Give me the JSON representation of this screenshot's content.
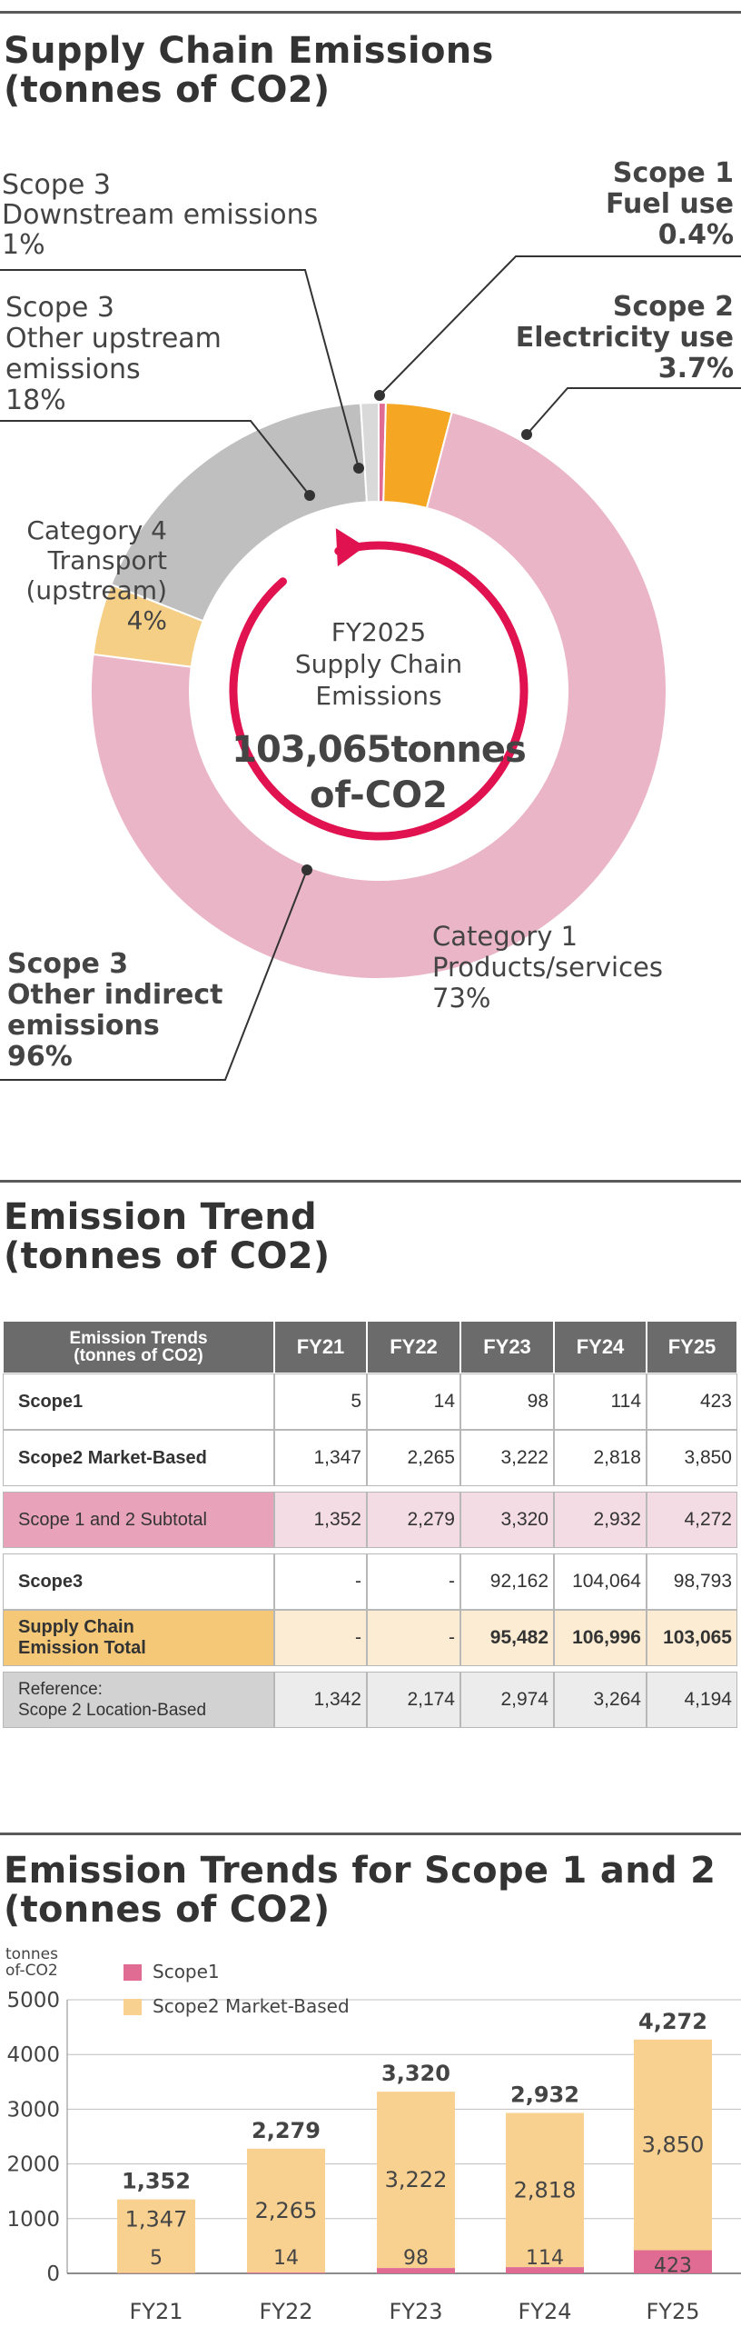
{
  "colors": {
    "scope1": "#e06c94",
    "scope2": "#f5a623",
    "category1": "#ebb5c8",
    "category4": "#f5cf85",
    "other_upstream": "#bfbfbf",
    "downstream": "#d9d9d9",
    "arrow": "#e0124f",
    "bar_scope1": "#e06c94",
    "bar_scope2": "#f8d190"
  },
  "section1": {
    "title": "Supply Chain Emissions\n(tonnes of CO2)",
    "center": {
      "line1": "FY2025",
      "line2": "Supply Chain",
      "line3": "Emissions",
      "value": "103,065tonnes",
      "unit": "of-CO2"
    },
    "labels": {
      "downstream": [
        "Scope 3",
        "Downstream emissions",
        "1%"
      ],
      "other_upstream": [
        "Scope 3",
        "Other upstream",
        "emissions",
        "18%"
      ],
      "category4": [
        "Category 4",
        "Transport",
        "(upstream)",
        "4%"
      ],
      "scope1": [
        "Scope 1",
        "Fuel use",
        "0.4%"
      ],
      "scope2": [
        "Scope 2",
        "Electricity use",
        "3.7%"
      ],
      "category1": [
        "Category 1",
        "Products/services",
        "73%"
      ],
      "scope3_total": [
        "Scope 3",
        "Other indirect",
        "emissions",
        "96%"
      ]
    }
  },
  "section2": {
    "title": "Emission Trend\n(tonnes of CO2)",
    "table": {
      "head_label": "Emission Trends\n(tonnes of CO2)",
      "years": [
        "FY21",
        "FY22",
        "FY23",
        "FY24",
        "FY25"
      ],
      "rows": [
        {
          "label": "Scope1",
          "values": [
            "5",
            "14",
            "98",
            "114",
            "423"
          ]
        },
        {
          "label": "Scope2 Market-Based",
          "values": [
            "1,347",
            "2,265",
            "3,222",
            "2,818",
            "3,850"
          ]
        },
        {
          "label": "Scope 1 and 2 Subtotal",
          "values": [
            "1,352",
            "2,279",
            "3,320",
            "2,932",
            "4,272"
          ]
        },
        {
          "label": "Scope3",
          "values": [
            "-",
            "-",
            "92,162",
            "104,064",
            "98,793"
          ]
        },
        {
          "label": "Supply Chain\nEmission Total",
          "values": [
            "-",
            "-",
            "95,482",
            "106,996",
            "103,065"
          ]
        },
        {
          "label": "Reference:\nScope 2 Location-Based",
          "values": [
            "1,342",
            "2,174",
            "2,974",
            "3,264",
            "4,194"
          ]
        }
      ]
    }
  },
  "section3": {
    "title": "Emission Trends for Scope 1 and 2\n(tonnes of CO2)",
    "ylabel": [
      "tonnes",
      "of-CO2"
    ]
  },
  "chart_data": [
    {
      "type": "pie",
      "title": "Supply Chain Emissions (tonnes of CO2)",
      "categories": [
        "Scope 1 Fuel use",
        "Scope 2 Electricity use",
        "Category 1 Products/services",
        "Category 4 Transport (upstream)",
        "Scope 3 Other upstream emissions",
        "Scope 3 Downstream emissions"
      ],
      "values": [
        0.4,
        3.7,
        73,
        4,
        18,
        1
      ]
    },
    {
      "type": "bar",
      "title": "Emission Trends for Scope 1 and 2 (tonnes of CO2)",
      "categories": [
        "FY21",
        "FY22",
        "FY23",
        "FY24",
        "FY25"
      ],
      "series": [
        {
          "name": "Scope1",
          "values": [
            5,
            14,
            98,
            114,
            423
          ]
        },
        {
          "name": "Scope2 Market-Based",
          "values": [
            1347,
            2265,
            3222,
            2818,
            3850
          ]
        }
      ],
      "totals": [
        1352,
        2279,
        3320,
        2932,
        4272
      ],
      "yticks": [
        0,
        1000,
        2000,
        3000,
        4000,
        5000
      ],
      "ylim": [
        0,
        5000
      ],
      "stacked": true,
      "legend": "top-left"
    }
  ]
}
